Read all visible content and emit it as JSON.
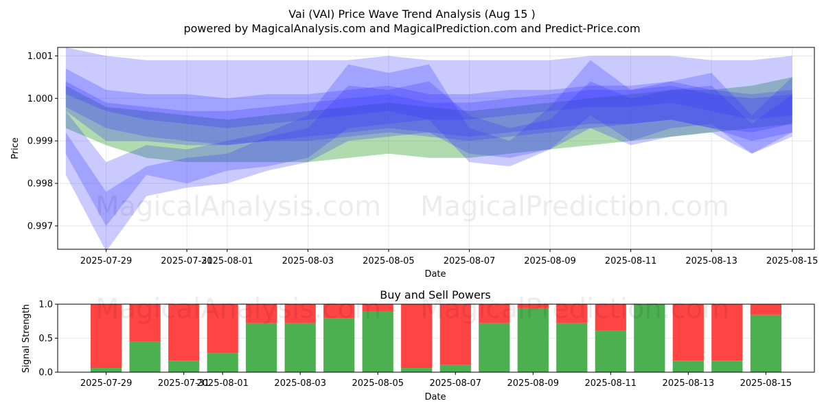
{
  "header": {
    "title": "Vai (VAI) Price Wave Trend Analysis (Aug 15 )",
    "subtitle": "powered by MagicalAnalysis.com and MagicalPrediction.com and Predict-Price.com"
  },
  "watermark": {
    "left": "MagicalAnalysis.com",
    "right": "MagicalPrediction.com"
  },
  "colors": {
    "bands_blue": "#3333ff",
    "band_green": "#2ca02c",
    "buy": "#4caf50",
    "sell": "#ff4444"
  },
  "chart_data": [
    {
      "type": "area",
      "title": "",
      "xlabel": "Date",
      "ylabel": "Price",
      "ylim": [
        0.99645,
        1.0012
      ],
      "yticks": [
        "0.997",
        "0.998",
        "0.999",
        "1.000",
        "1.001"
      ],
      "xticks": [
        "2025-07-29",
        "2025-07-31",
        "2025-08-01",
        "2025-08-03",
        "2025-08-05",
        "2025-08-07",
        "2025-08-09",
        "2025-08-11",
        "2025-08-13",
        "2025-08-15"
      ],
      "grid": true,
      "x": [
        "2025-07-28",
        "2025-07-29",
        "2025-07-30",
        "2025-07-31",
        "2025-08-01",
        "2025-08-02",
        "2025-08-03",
        "2025-08-04",
        "2025-08-05",
        "2025-08-06",
        "2025-08-07",
        "2025-08-08",
        "2025-08-09",
        "2025-08-10",
        "2025-08-11",
        "2025-08-12",
        "2025-08-13",
        "2025-08-14",
        "2025-08-15"
      ],
      "series": [
        {
          "color": "green",
          "upper": [
            1.0003,
            0.9998,
            0.9997,
            0.9996,
            0.9995,
            0.9996,
            0.9997,
            0.9998,
            0.9999,
            0.9998,
            0.9997,
            0.9998,
            0.9999,
            1.0,
            1.0001,
            1.0002,
            1.0002,
            1.0003,
            1.0005
          ],
          "lower": [
            0.9993,
            0.9989,
            0.9986,
            0.9985,
            0.9985,
            0.9985,
            0.9985,
            0.9986,
            0.9987,
            0.9986,
            0.9986,
            0.9987,
            0.9988,
            0.9989,
            0.999,
            0.9991,
            0.9992,
            0.9993,
            0.9994
          ]
        },
        {
          "color": "blue",
          "upper": [
            1.0012,
            1.001,
            1.0009,
            1.0009,
            1.0009,
            1.0009,
            1.0009,
            1.0009,
            1.001,
            1.0009,
            1.0009,
            1.0009,
            1.0009,
            1.001,
            1.001,
            1.001,
            1.0009,
            1.0009,
            1.001
          ],
          "lower": [
            0.9998,
            0.9993,
            0.9991,
            0.999,
            0.9989,
            0.999,
            0.9991,
            0.9992,
            0.9993,
            0.9992,
            0.9991,
            0.9992,
            0.9993,
            0.9994,
            0.9994,
            0.9995,
            0.9993,
            0.999,
            0.9992
          ]
        },
        {
          "color": "blue",
          "upper": [
            1.0007,
            1.0002,
            1.0001,
            1.0001,
            1.0,
            1.0001,
            1.0001,
            1.0002,
            1.0003,
            1.0001,
            1.0001,
            1.0002,
            1.0002,
            1.0003,
            1.0003,
            1.0004,
            1.0002,
            1.0001,
            1.0002
          ],
          "lower": [
            1.0001,
            0.9997,
            0.9995,
            0.9994,
            0.9993,
            0.9994,
            0.9995,
            0.9996,
            0.9997,
            0.9995,
            0.9995,
            0.9996,
            0.9997,
            0.9998,
            0.9998,
            0.9999,
            0.9997,
            0.9995,
            0.9996
          ]
        },
        {
          "color": "blue",
          "upper": [
            1.0004,
            0.9999,
            0.9998,
            0.9997,
            0.9997,
            0.9998,
            0.9999,
            1.0,
            1.0001,
            0.9999,
            0.9999,
            1.0,
            1.0001,
            1.0002,
            1.0002,
            1.0003,
            1.0001,
            1.0,
            1.0001
          ],
          "lower": [
            0.9997,
            0.999,
            0.999,
            0.9989,
            0.9989,
            0.999,
            0.999,
            0.9991,
            0.9992,
            0.9991,
            0.999,
            0.9991,
            0.9992,
            0.9993,
            0.9994,
            0.9995,
            0.9993,
            0.9992,
            0.9994
          ]
        },
        {
          "color": "blue",
          "upper": [
            0.9997,
            0.9985,
            0.9989,
            0.9988,
            0.999,
            0.9992,
            0.9996,
            1.0008,
            1.0006,
            1.0008,
            0.9993,
            0.999,
            0.9998,
            1.0009,
            1.0002,
            1.0004,
            1.0006,
            0.9996,
            1.0005
          ],
          "lower": [
            0.9987,
            0.997,
            0.9982,
            0.998,
            0.9983,
            0.9984,
            0.9986,
            0.9993,
            0.9994,
            0.9995,
            0.9985,
            0.9984,
            0.9988,
            0.9996,
            0.999,
            0.9993,
            0.9994,
            0.9987,
            0.9992
          ]
        },
        {
          "color": "blue",
          "upper": [
            0.9992,
            0.9978,
            0.9984,
            0.9986,
            0.9987,
            0.9991,
            0.9993,
            1.0003,
            1.0002,
            1.0004,
            0.9996,
            0.9993,
            0.9995,
            1.0004,
            1.0,
            1.0002,
            1.0003,
            0.9994,
            1.0001
          ],
          "lower": [
            0.9982,
            0.9964,
            0.9977,
            0.9979,
            0.998,
            0.9983,
            0.9985,
            0.999,
            0.9991,
            0.9992,
            0.9987,
            0.9986,
            0.9988,
            0.9993,
            0.9989,
            0.9991,
            0.9992,
            0.9987,
            0.9991
          ]
        }
      ]
    },
    {
      "type": "bar",
      "title": "Buy and Sell Powers",
      "xlabel": "Date",
      "ylabel": "Signal Strength",
      "ylim": [
        0,
        1
      ],
      "yticks": [
        "0.0",
        "0.5",
        "1.0"
      ],
      "xticks": [
        "2025-07-29",
        "2025-07-31",
        "2025-08-01",
        "2025-08-03",
        "2025-08-05",
        "2025-08-07",
        "2025-08-09",
        "2025-08-11",
        "2025-08-13",
        "2025-08-15"
      ],
      "categories": [
        "2025-07-29",
        "2025-07-30",
        "2025-07-31",
        "2025-08-01",
        "2025-08-02",
        "2025-08-03",
        "2025-08-04",
        "2025-08-05",
        "2025-08-06",
        "2025-08-07",
        "2025-08-08",
        "2025-08-09",
        "2025-08-10",
        "2025-08-11",
        "2025-08-12",
        "2025-08-13",
        "2025-08-14",
        "2025-08-15"
      ],
      "buy": [
        0.06,
        0.45,
        0.17,
        0.28,
        0.72,
        0.72,
        0.79,
        0.89,
        0.06,
        0.11,
        0.72,
        0.94,
        0.72,
        0.61,
        1.0,
        0.17,
        0.17,
        0.84
      ]
    }
  ]
}
